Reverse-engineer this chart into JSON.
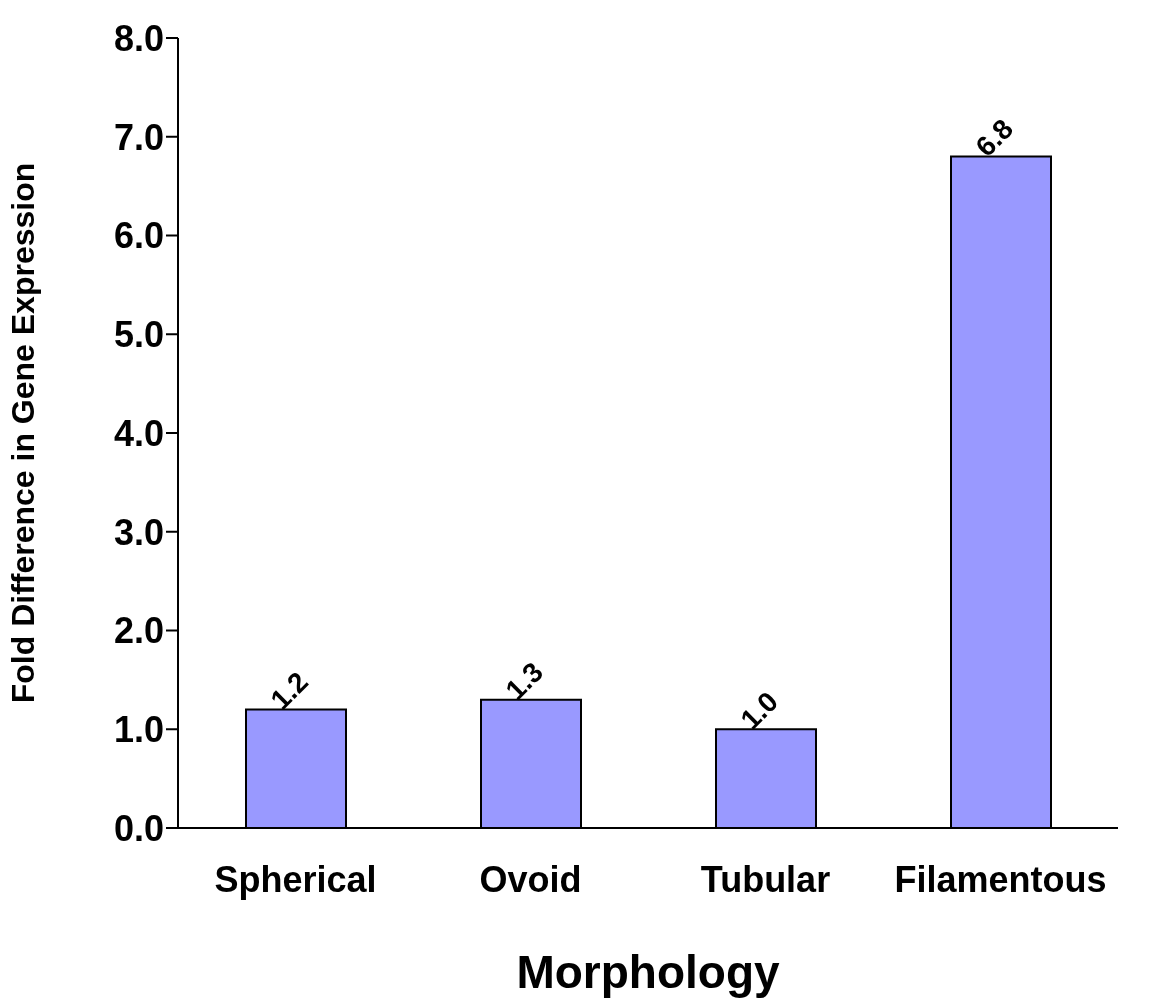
{
  "chart_data": {
    "type": "bar",
    "xlabel": "Morphology",
    "ylabel": "Fold Difference in Gene Expression",
    "categories": [
      "Spherical",
      "Ovoid",
      "Tubular",
      "Filamentous"
    ],
    "values": [
      1.2,
      1.3,
      1.0,
      6.8
    ],
    "value_labels": [
      "1.2",
      "1.3",
      "1.0",
      "6.8"
    ],
    "color": "#9999ff",
    "ylim": [
      0,
      8
    ],
    "yticks": [
      {
        "value": 0,
        "label": "0.0"
      },
      {
        "value": 1,
        "label": "1.0"
      },
      {
        "value": 2,
        "label": "2.0"
      },
      {
        "value": 3,
        "label": "3.0"
      },
      {
        "value": 4,
        "label": "4.0"
      },
      {
        "value": 5,
        "label": "5.0"
      },
      {
        "value": 6,
        "label": "6.0"
      },
      {
        "value": 7,
        "label": "7.0"
      },
      {
        "value": 8,
        "label": "8.0"
      }
    ],
    "grid": false,
    "legend": false
  }
}
